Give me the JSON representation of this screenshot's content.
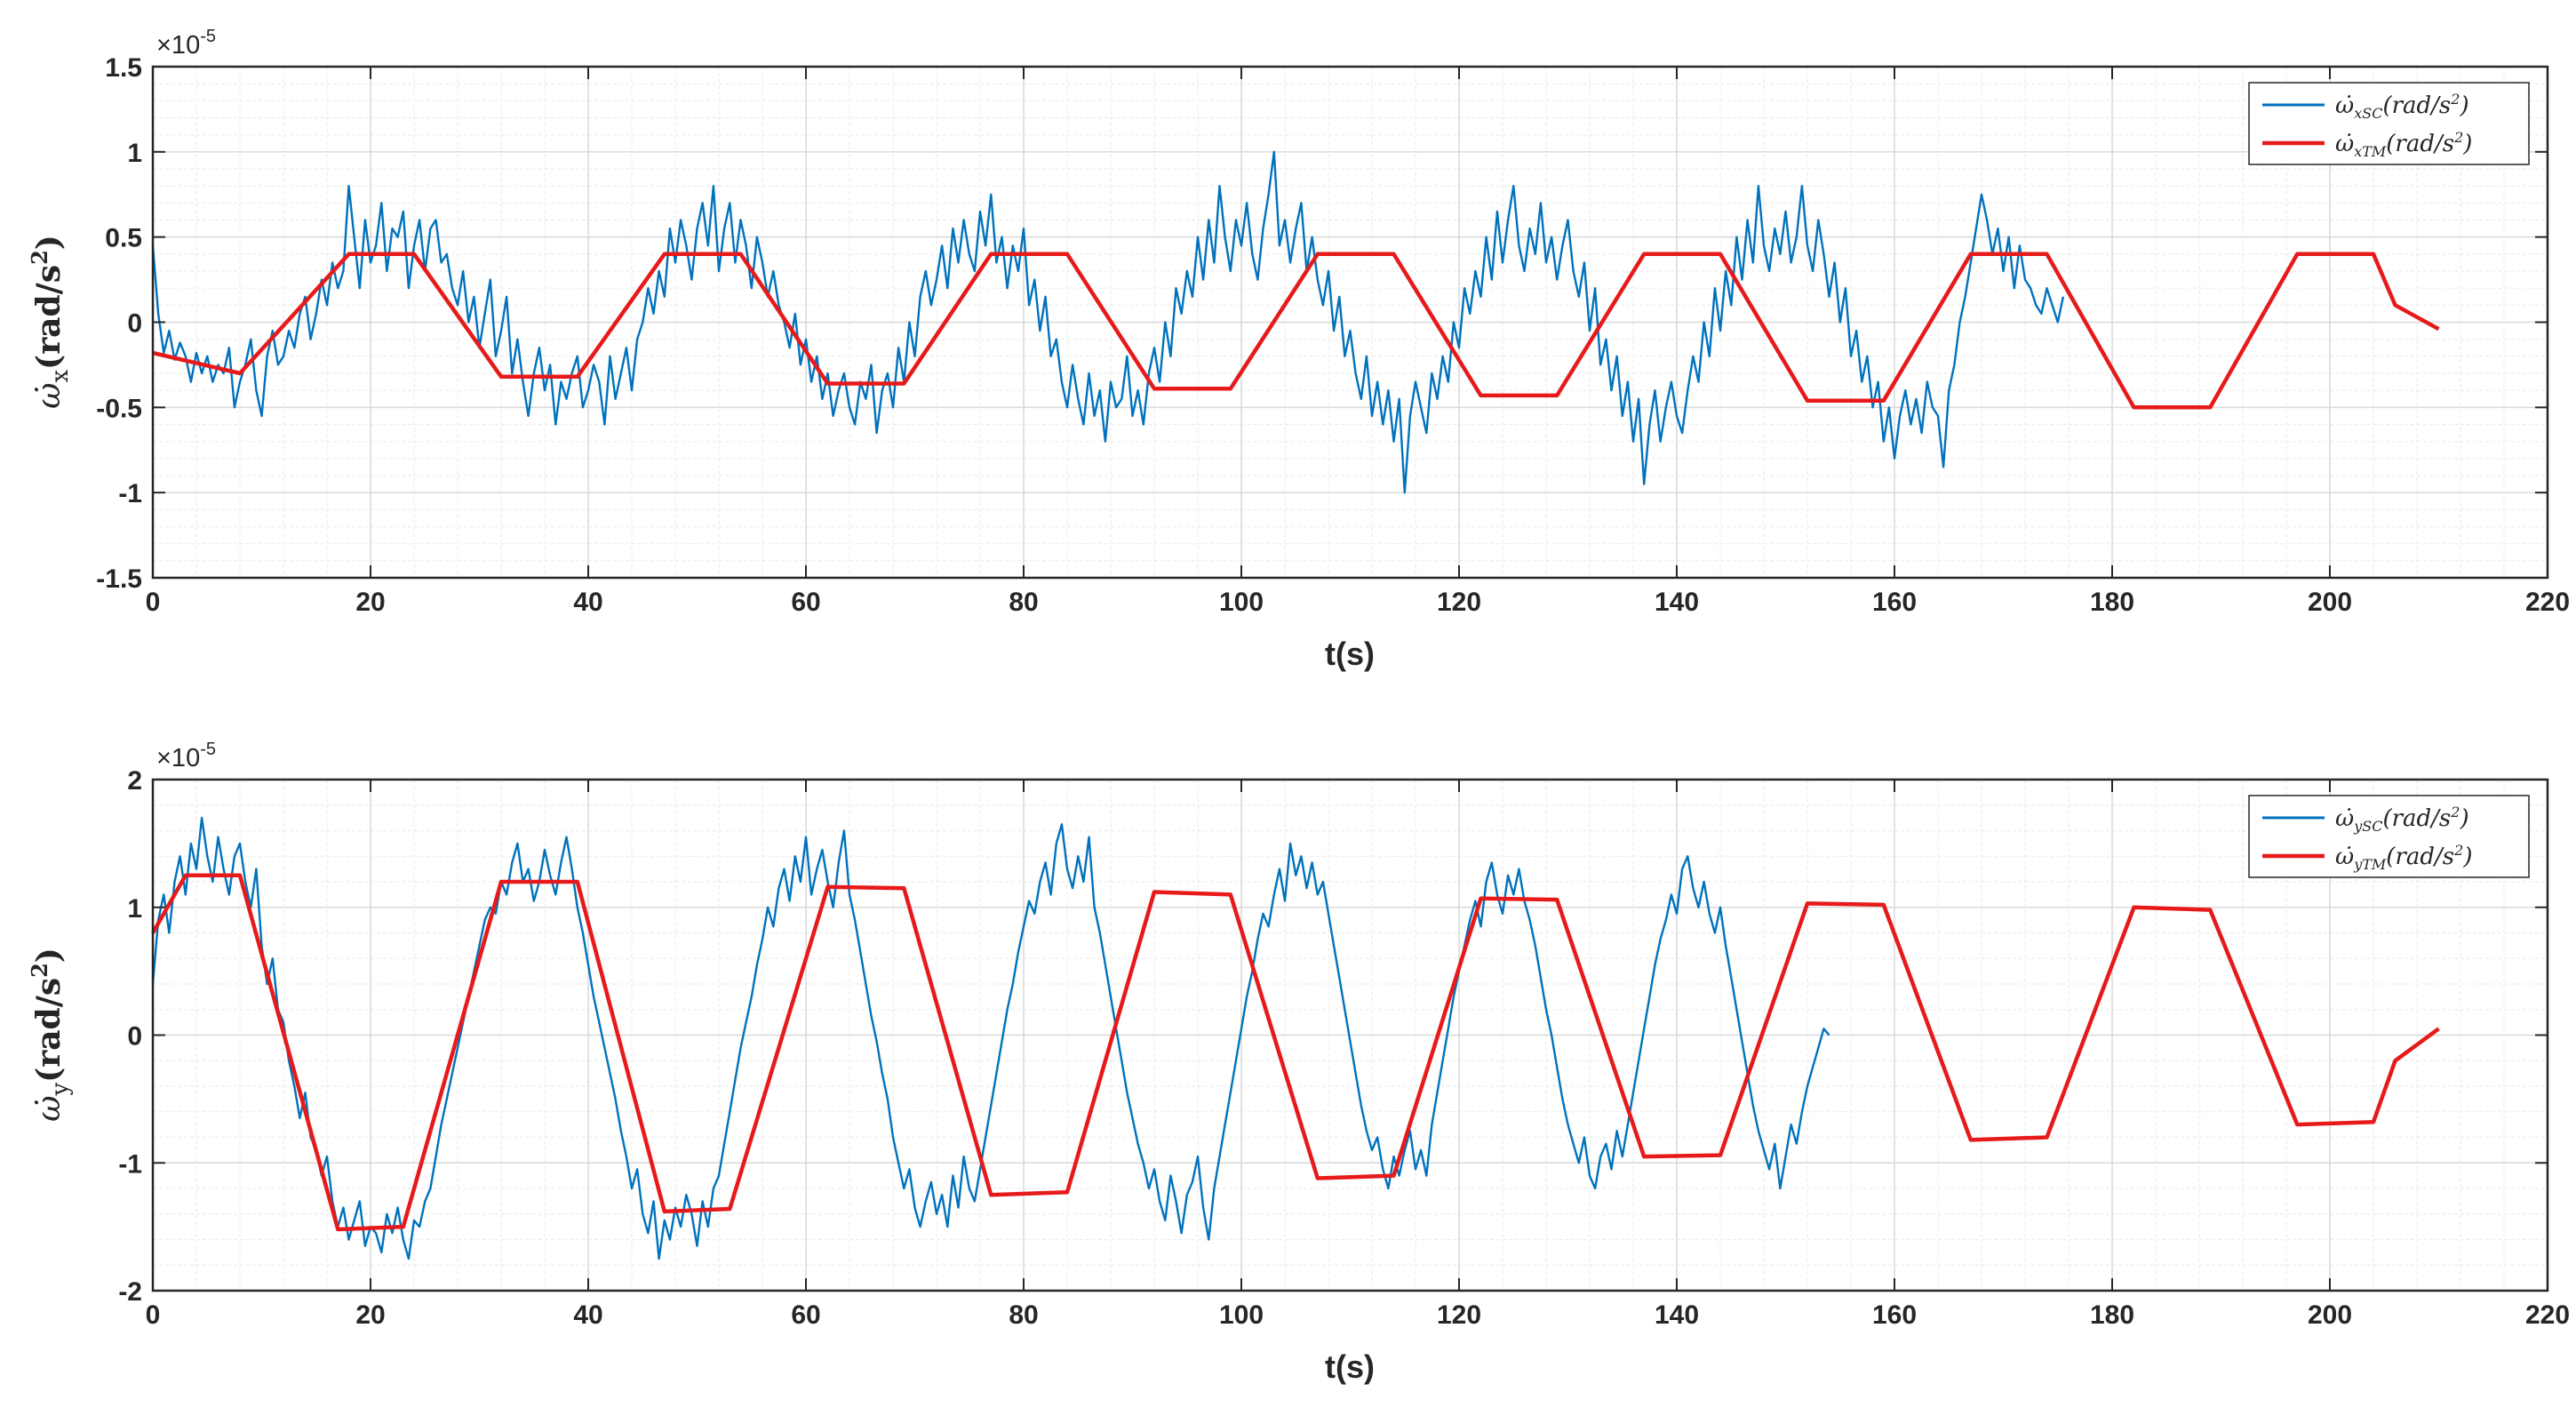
{
  "colors": {
    "sc_series": "#0072BD",
    "tm_series": "#E61A1A",
    "axis": "#262626",
    "grid_major": "#d9d9d9",
    "grid_minor": "#ececec"
  },
  "chart_data": [
    {
      "type": "line",
      "xlabel": "t(s)",
      "ylabel_symbol": "ω̇",
      "ylabel_sub": "x",
      "ylabel_unit": "(rad/s",
      "ylabel_pow": "2",
      "ylabel_close": ")",
      "exponent_label": "×10",
      "exponent_power": "-5",
      "xlim": [
        0,
        220
      ],
      "ylim": [
        -1.5,
        1.5
      ],
      "xticks": [
        0,
        20,
        40,
        60,
        80,
        100,
        120,
        140,
        160,
        180,
        200,
        220
      ],
      "xtick_labels": [
        "0",
        "20",
        "40",
        "60",
        "80",
        "100",
        "120",
        "140",
        "160",
        "180",
        "200",
        "220"
      ],
      "yticks": [
        -1.5,
        -1,
        -0.5,
        0,
        0.5,
        1,
        1.5
      ],
      "ytick_labels": [
        "-1.5",
        "-1",
        "-0.5",
        "0",
        "0.5",
        "1",
        "1.5"
      ],
      "grid": true,
      "minor_grid": true,
      "legend_position": "top-right",
      "legend": [
        {
          "sym": "ω̇",
          "sub": "xSC",
          "unit": "(rad/s",
          "pow": "2",
          "close": ")"
        },
        {
          "sym": "ω̇",
          "sub": "xTM",
          "unit": "(rad/s",
          "pow": "2",
          "close": ")"
        }
      ],
      "series": [
        {
          "kind": "measured",
          "x_start": 0,
          "x_end": 210,
          "x_step": 0.5,
          "y": [
            0.45,
            0.05,
            -0.18,
            -0.05,
            -0.22,
            -0.12,
            -0.2,
            -0.35,
            -0.18,
            -0.3,
            -0.2,
            -0.35,
            -0.25,
            -0.3,
            -0.15,
            -0.5,
            -0.35,
            -0.25,
            -0.1,
            -0.4,
            -0.55,
            -0.2,
            -0.05,
            -0.25,
            -0.2,
            -0.05,
            -0.15,
            0.05,
            0.15,
            -0.1,
            0.05,
            0.25,
            0.1,
            0.35,
            0.2,
            0.3,
            0.8,
            0.5,
            0.2,
            0.6,
            0.35,
            0.45,
            0.7,
            0.3,
            0.55,
            0.5,
            0.65,
            0.2,
            0.45,
            0.6,
            0.3,
            0.55,
            0.6,
            0.35,
            0.4,
            0.2,
            0.1,
            0.3,
            0.0,
            0.15,
            -0.15,
            0.05,
            0.25,
            -0.2,
            -0.05,
            0.15,
            -0.3,
            -0.1,
            -0.35,
            -0.55,
            -0.3,
            -0.15,
            -0.4,
            -0.25,
            -0.6,
            -0.35,
            -0.45,
            -0.3,
            -0.2,
            -0.5,
            -0.4,
            -0.25,
            -0.35,
            -0.6,
            -0.2,
            -0.45,
            -0.3,
            -0.15,
            -0.4,
            -0.1,
            0.0,
            0.2,
            0.05,
            0.3,
            0.15,
            0.55,
            0.35,
            0.6,
            0.45,
            0.25,
            0.55,
            0.7,
            0.45,
            0.8,
            0.3,
            0.55,
            0.7,
            0.35,
            0.6,
            0.45,
            0.2,
            0.5,
            0.35,
            0.15,
            0.3,
            0.1,
            0.0,
            -0.15,
            0.05,
            -0.25,
            -0.1,
            -0.35,
            -0.2,
            -0.45,
            -0.3,
            -0.55,
            -0.4,
            -0.3,
            -0.5,
            -0.6,
            -0.35,
            -0.45,
            -0.25,
            -0.65,
            -0.4,
            -0.3,
            -0.5,
            -0.15,
            -0.35,
            0.0,
            -0.2,
            0.15,
            0.3,
            0.1,
            0.25,
            0.45,
            0.2,
            0.55,
            0.35,
            0.6,
            0.4,
            0.3,
            0.65,
            0.45,
            0.75,
            0.35,
            0.5,
            0.2,
            0.45,
            0.3,
            0.55,
            0.1,
            0.25,
            -0.05,
            0.15,
            -0.2,
            -0.1,
            -0.35,
            -0.5,
            -0.25,
            -0.45,
            -0.6,
            -0.3,
            -0.55,
            -0.4,
            -0.7,
            -0.35,
            -0.5,
            -0.45,
            -0.2,
            -0.55,
            -0.4,
            -0.6,
            -0.3,
            -0.15,
            -0.35,
            0.0,
            -0.2,
            0.2,
            0.05,
            0.3,
            0.15,
            0.5,
            0.25,
            0.6,
            0.35,
            0.8,
            0.5,
            0.3,
            0.6,
            0.45,
            0.7,
            0.4,
            0.25,
            0.55,
            0.75,
            1.0,
            0.45,
            0.6,
            0.35,
            0.55,
            0.7,
            0.3,
            0.5,
            0.25,
            0.1,
            0.3,
            -0.05,
            0.15,
            -0.2,
            -0.05,
            -0.3,
            -0.45,
            -0.2,
            -0.55,
            -0.35,
            -0.6,
            -0.4,
            -0.7,
            -0.45,
            -1.0,
            -0.55,
            -0.35,
            -0.5,
            -0.65,
            -0.3,
            -0.45,
            -0.2,
            -0.35,
            0.0,
            -0.15,
            0.2,
            0.05,
            0.3,
            0.15,
            0.5,
            0.25,
            0.65,
            0.35,
            0.6,
            0.8,
            0.45,
            0.3,
            0.55,
            0.4,
            0.7,
            0.35,
            0.5,
            0.25,
            0.45,
            0.6,
            0.3,
            0.15,
            0.35,
            -0.05,
            0.2,
            -0.25,
            -0.1,
            -0.4,
            -0.2,
            -0.55,
            -0.35,
            -0.7,
            -0.45,
            -0.95,
            -0.6,
            -0.4,
            -0.7,
            -0.5,
            -0.35,
            -0.55,
            -0.65,
            -0.4,
            -0.2,
            -0.35,
            0.0,
            -0.2,
            0.2,
            -0.05,
            0.3,
            0.1,
            0.5,
            0.25,
            0.6,
            0.35,
            0.8,
            0.45,
            0.3,
            0.55,
            0.4,
            0.65,
            0.35,
            0.5,
            0.8,
            0.45,
            0.3,
            0.6,
            0.4,
            0.15,
            0.35,
            0.0,
            0.2,
            -0.2,
            -0.05,
            -0.35,
            -0.2,
            -0.5,
            -0.35,
            -0.7,
            -0.5,
            -0.8,
            -0.55,
            -0.4,
            -0.6,
            -0.45,
            -0.65,
            -0.35,
            -0.5,
            -0.55,
            -0.85,
            -0.4,
            -0.25,
            0.0,
            0.15,
            0.35,
            0.55,
            0.75,
            0.6,
            0.4,
            0.55,
            0.3,
            0.5,
            0.2,
            0.45,
            0.25,
            0.2,
            0.1,
            0.05,
            0.2,
            0.1,
            0.0,
            0.15
          ]
        },
        {
          "kind": "model",
          "x": [
            0,
            8,
            18,
            24,
            32,
            39,
            47,
            54,
            62,
            69,
            77,
            84,
            92,
            99,
            107,
            114,
            122,
            129,
            137,
            144,
            152,
            159,
            167,
            174,
            182,
            189,
            197,
            204,
            206,
            210
          ],
          "y": [
            -0.18,
            -0.3,
            0.4,
            0.4,
            -0.32,
            -0.32,
            0.4,
            0.4,
            -0.36,
            -0.36,
            0.4,
            0.4,
            -0.39,
            -0.39,
            0.4,
            0.4,
            -0.43,
            -0.43,
            0.4,
            0.4,
            -0.46,
            -0.46,
            0.4,
            0.4,
            -0.5,
            -0.5,
            0.4,
            0.4,
            0.1,
            -0.04
          ]
        }
      ]
    },
    {
      "type": "line",
      "xlabel": "t(s)",
      "ylabel_symbol": "ω̇",
      "ylabel_sub": "y",
      "ylabel_unit": "(rad/s",
      "ylabel_pow": "2",
      "ylabel_close": ")",
      "exponent_label": "×10",
      "exponent_power": "-5",
      "xlim": [
        0,
        220
      ],
      "ylim": [
        -2,
        2
      ],
      "xticks": [
        0,
        20,
        40,
        60,
        80,
        100,
        120,
        140,
        160,
        180,
        200,
        220
      ],
      "xtick_labels": [
        "0",
        "20",
        "40",
        "60",
        "80",
        "100",
        "120",
        "140",
        "160",
        "180",
        "200",
        "220"
      ],
      "yticks": [
        -2,
        -1,
        0,
        1,
        2
      ],
      "ytick_labels": [
        "-2",
        "-1",
        "0",
        "1",
        "2"
      ],
      "grid": true,
      "minor_grid": true,
      "legend_position": "top-right",
      "legend": [
        {
          "sym": "ω̇",
          "sub": "ySC",
          "unit": "(rad/s",
          "pow": "2",
          "close": ")"
        },
        {
          "sym": "ω̇",
          "sub": "yTM",
          "unit": "(rad/s",
          "pow": "2",
          "close": ")"
        }
      ],
      "series": [
        {
          "kind": "measured",
          "x_start": 0,
          "x_end": 210,
          "x_step": 0.5,
          "y": [
            0.4,
            0.9,
            1.1,
            0.8,
            1.2,
            1.4,
            1.1,
            1.5,
            1.3,
            1.7,
            1.4,
            1.2,
            1.55,
            1.3,
            1.1,
            1.4,
            1.5,
            1.2,
            1.0,
            1.3,
            0.7,
            0.4,
            0.6,
            0.2,
            0.1,
            -0.2,
            -0.4,
            -0.65,
            -0.45,
            -0.8,
            -0.9,
            -1.1,
            -0.95,
            -1.3,
            -1.5,
            -1.35,
            -1.6,
            -1.45,
            -1.3,
            -1.65,
            -1.5,
            -1.55,
            -1.7,
            -1.4,
            -1.55,
            -1.35,
            -1.6,
            -1.75,
            -1.45,
            -1.5,
            -1.3,
            -1.2,
            -0.95,
            -0.7,
            -0.5,
            -0.3,
            -0.1,
            0.1,
            0.3,
            0.5,
            0.7,
            0.9,
            1.0,
            0.95,
            1.2,
            1.1,
            1.35,
            1.5,
            1.2,
            1.3,
            1.05,
            1.2,
            1.45,
            1.25,
            1.1,
            1.35,
            1.55,
            1.3,
            1.0,
            0.8,
            0.55,
            0.3,
            0.1,
            -0.1,
            -0.3,
            -0.5,
            -0.75,
            -0.95,
            -1.2,
            -1.05,
            -1.4,
            -1.55,
            -1.3,
            -1.75,
            -1.45,
            -1.6,
            -1.35,
            -1.5,
            -1.25,
            -1.4,
            -1.65,
            -1.3,
            -1.5,
            -1.2,
            -1.1,
            -0.85,
            -0.6,
            -0.35,
            -0.1,
            0.1,
            0.3,
            0.55,
            0.75,
            1.0,
            0.85,
            1.15,
            1.3,
            1.05,
            1.4,
            1.2,
            1.55,
            1.1,
            1.3,
            1.45,
            1.2,
            1.0,
            1.35,
            1.6,
            1.1,
            0.9,
            0.65,
            0.4,
            0.15,
            -0.05,
            -0.3,
            -0.5,
            -0.8,
            -1.0,
            -1.2,
            -1.05,
            -1.35,
            -1.5,
            -1.3,
            -1.15,
            -1.4,
            -1.25,
            -1.5,
            -1.1,
            -1.35,
            -0.95,
            -1.2,
            -1.3,
            -1.05,
            -0.8,
            -0.55,
            -0.3,
            -0.05,
            0.2,
            0.4,
            0.65,
            0.85,
            1.05,
            0.95,
            1.2,
            1.35,
            1.1,
            1.5,
            1.65,
            1.3,
            1.15,
            1.4,
            1.2,
            1.55,
            1.0,
            0.8,
            0.55,
            0.3,
            0.05,
            -0.2,
            -0.45,
            -0.65,
            -0.85,
            -1.0,
            -1.2,
            -1.05,
            -1.3,
            -1.45,
            -1.1,
            -1.3,
            -1.55,
            -1.25,
            -1.15,
            -0.95,
            -1.35,
            -1.6,
            -1.2,
            -0.95,
            -0.7,
            -0.45,
            -0.2,
            0.05,
            0.3,
            0.5,
            0.75,
            0.95,
            0.85,
            1.1,
            1.3,
            1.05,
            1.5,
            1.25,
            1.4,
            1.15,
            1.35,
            1.1,
            1.2,
            0.95,
            0.7,
            0.45,
            0.2,
            -0.05,
            -0.3,
            -0.55,
            -0.75,
            -0.9,
            -0.8,
            -1.05,
            -1.2,
            -0.95,
            -1.1,
            -0.9,
            -0.75,
            -1.05,
            -0.9,
            -1.1,
            -0.7,
            -0.45,
            -0.2,
            0.05,
            0.3,
            0.5,
            0.7,
            0.9,
            1.05,
            0.85,
            1.2,
            1.35,
            1.1,
            0.95,
            1.25,
            1.1,
            1.3,
            1.05,
            0.9,
            0.7,
            0.45,
            0.2,
            0.0,
            -0.25,
            -0.5,
            -0.7,
            -0.85,
            -1.0,
            -0.8,
            -1.1,
            -1.2,
            -0.95,
            -0.85,
            -1.05,
            -0.75,
            -0.95,
            -0.7,
            -0.45,
            -0.2,
            0.05,
            0.3,
            0.55,
            0.75,
            0.9,
            1.1,
            0.95,
            1.3,
            1.4,
            1.15,
            1.0,
            1.2,
            0.95,
            0.8,
            1.0,
            0.7,
            0.45,
            0.2,
            -0.05,
            -0.3,
            -0.55,
            -0.75,
            -0.9,
            -1.05,
            -0.85,
            -1.2,
            -0.95,
            -0.7,
            -0.85,
            -0.6,
            -0.4,
            -0.25,
            -0.1,
            0.05,
            0.0
          ]
        },
        {
          "kind": "model",
          "x": [
            0,
            3,
            8,
            17,
            23,
            32,
            39,
            47,
            53,
            62,
            69,
            77,
            84,
            92,
            99,
            107,
            114,
            122,
            129,
            137,
            144,
            152,
            159,
            167,
            174,
            182,
            189,
            197,
            204,
            206,
            210
          ],
          "y": [
            0.8,
            1.25,
            1.25,
            -1.52,
            -1.5,
            1.2,
            1.2,
            -1.38,
            -1.36,
            1.16,
            1.15,
            -1.25,
            -1.23,
            1.12,
            1.1,
            -1.12,
            -1.1,
            1.07,
            1.06,
            -0.95,
            -0.94,
            1.03,
            1.02,
            -0.82,
            -0.8,
            1.0,
            0.98,
            -0.7,
            -0.68,
            -0.2,
            0.05
          ]
        }
      ]
    }
  ]
}
